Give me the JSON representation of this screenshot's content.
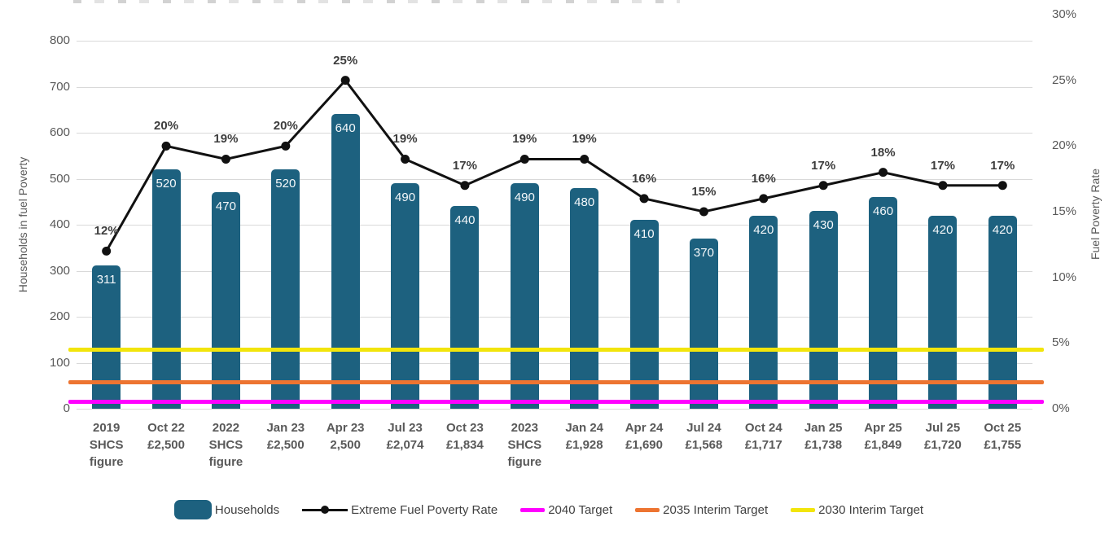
{
  "colors": {
    "bar": "#1d617f",
    "line": "#111111",
    "target_2040": "#ff00ff",
    "target_2035": "#ed7431",
    "target_2030": "#f2e50b",
    "gridline": "#d9d9d9",
    "axis_text": "#595959",
    "data_label_text": "#3d3d3d",
    "bar_label_text": "#f5f8fa"
  },
  "chart_data": {
    "type": "bar",
    "subtype": "bar-line-combo",
    "grid": true,
    "legend_position": "bottom",
    "categories": [
      [
        "2019",
        "SHCS",
        "figure"
      ],
      [
        "Oct 22",
        "£2,500"
      ],
      [
        "2022",
        "SHCS",
        "figure"
      ],
      [
        "Jan 23",
        "£2,500"
      ],
      [
        "Apr 23",
        "2,500"
      ],
      [
        "Jul 23",
        "£2,074"
      ],
      [
        "Oct 23",
        "£1,834"
      ],
      [
        "2023",
        "SHCS",
        "figure"
      ],
      [
        "Jan 24",
        "£1,928"
      ],
      [
        "Apr 24",
        "£1,690"
      ],
      [
        "Jul 24",
        "£1,568"
      ],
      [
        "Oct 24",
        "£1,717"
      ],
      [
        "Jan 25",
        "£1,738"
      ],
      [
        "Apr 25",
        "£1,849"
      ],
      [
        "Jul 25",
        "£1,720"
      ],
      [
        "Oct 25",
        "£1,755"
      ]
    ],
    "series": [
      {
        "name": "Households",
        "type": "bar",
        "axis": "left",
        "values": [
          311,
          520,
          470,
          520,
          640,
          490,
          440,
          490,
          480,
          410,
          370,
          420,
          430,
          460,
          420,
          420
        ],
        "labels": [
          "311",
          "520",
          "470",
          "520",
          "640",
          "490",
          "440",
          "490",
          "480",
          "410",
          "370",
          "420",
          "430",
          "460",
          "420",
          "420"
        ]
      },
      {
        "name": "Extreme Fuel Poverty Rate",
        "type": "line",
        "axis": "right",
        "values": [
          12,
          20,
          19,
          20,
          25,
          19,
          17,
          19,
          19,
          16,
          15,
          16,
          17,
          18,
          17,
          17
        ],
        "labels": [
          "12%",
          "20%",
          "19%",
          "20%",
          "25%",
          "19%",
          "17%",
          "19%",
          "19%",
          "16%",
          "15%",
          "16%",
          "17%",
          "18%",
          "17%",
          "17%"
        ]
      }
    ],
    "target_lines": [
      {
        "name": "2040 Target",
        "axis": "right",
        "value": 0.5
      },
      {
        "name": "2035 Interim Target",
        "axis": "right",
        "value": 2.0
      },
      {
        "name": "2030 Interim Target",
        "axis": "right",
        "value": 4.5
      }
    ],
    "axes": {
      "left": {
        "title": "Households in fuel Poverty",
        "min": 0,
        "max": 800,
        "step": 100,
        "ticks": [
          "0",
          "100",
          "200",
          "300",
          "400",
          "500",
          "600",
          "700",
          "800"
        ]
      },
      "right": {
        "title": "Fuel Poverty Rate",
        "min": 0,
        "max": 30,
        "step": 5,
        "ticks": [
          "0%",
          "5%",
          "10%",
          "15%",
          "20%",
          "25%",
          "30%"
        ]
      }
    }
  },
  "legend": {
    "items": [
      {
        "label": "Households",
        "swatch": "bar"
      },
      {
        "label": "Extreme Fuel Poverty Rate",
        "swatch": "line-marker"
      },
      {
        "label": "2040 Target",
        "swatch": "line",
        "color_key": "target_2040"
      },
      {
        "label": "2035 Interim Target",
        "swatch": "line",
        "color_key": "target_2035"
      },
      {
        "label": "2030 Interim Target",
        "swatch": "line",
        "color_key": "target_2030"
      }
    ]
  }
}
